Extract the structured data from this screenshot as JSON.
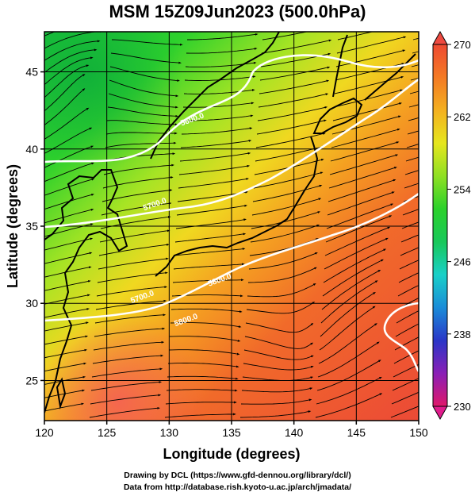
{
  "title": "MSM 15Z09Jun2023 (500.0hPa)",
  "xlabel": "Longitude (degrees)",
  "ylabel": "Latitude  (degrees)",
  "credit_line1": "Drawing by DCL (https://www.gfd-dennou.org/library/dcl/)",
  "credit_line2": "Data from http://database.rish.kyoto-u.ac.jp/arch/jmadata/",
  "map": {
    "lon_range": [
      120,
      150
    ],
    "lat_range": [
      22.4,
      47.6
    ],
    "lon_ticks": [
      "120",
      "125",
      "130",
      "135",
      "140",
      "145",
      "150"
    ],
    "lat_ticks": [
      "25",
      "30",
      "35",
      "40",
      "45"
    ],
    "grid_step_deg": 5,
    "contour_labels": [
      "5700.0",
      "5700.0",
      "5600.0",
      "5800.0",
      "5800.0"
    ],
    "contour_label_anchor_lon_lat": [
      [
        127,
        30
      ],
      [
        128,
        36
      ],
      [
        131,
        41.5
      ],
      [
        130.5,
        28.5
      ],
      [
        133.2,
        31.1
      ]
    ]
  },
  "colorbar": {
    "tick_labels": [
      "270",
      "262",
      "254",
      "246",
      "238",
      "230"
    ],
    "min": 230,
    "max": 270,
    "stops": [
      "#e0186a",
      "#8a1fb6",
      "#2a36c8",
      "#1a8cd8",
      "#19d0c8",
      "#18c85a",
      "#2bd12b",
      "#8fe023",
      "#e6e61e",
      "#f4b020",
      "#f47a24",
      "#ee4a32"
    ]
  }
}
